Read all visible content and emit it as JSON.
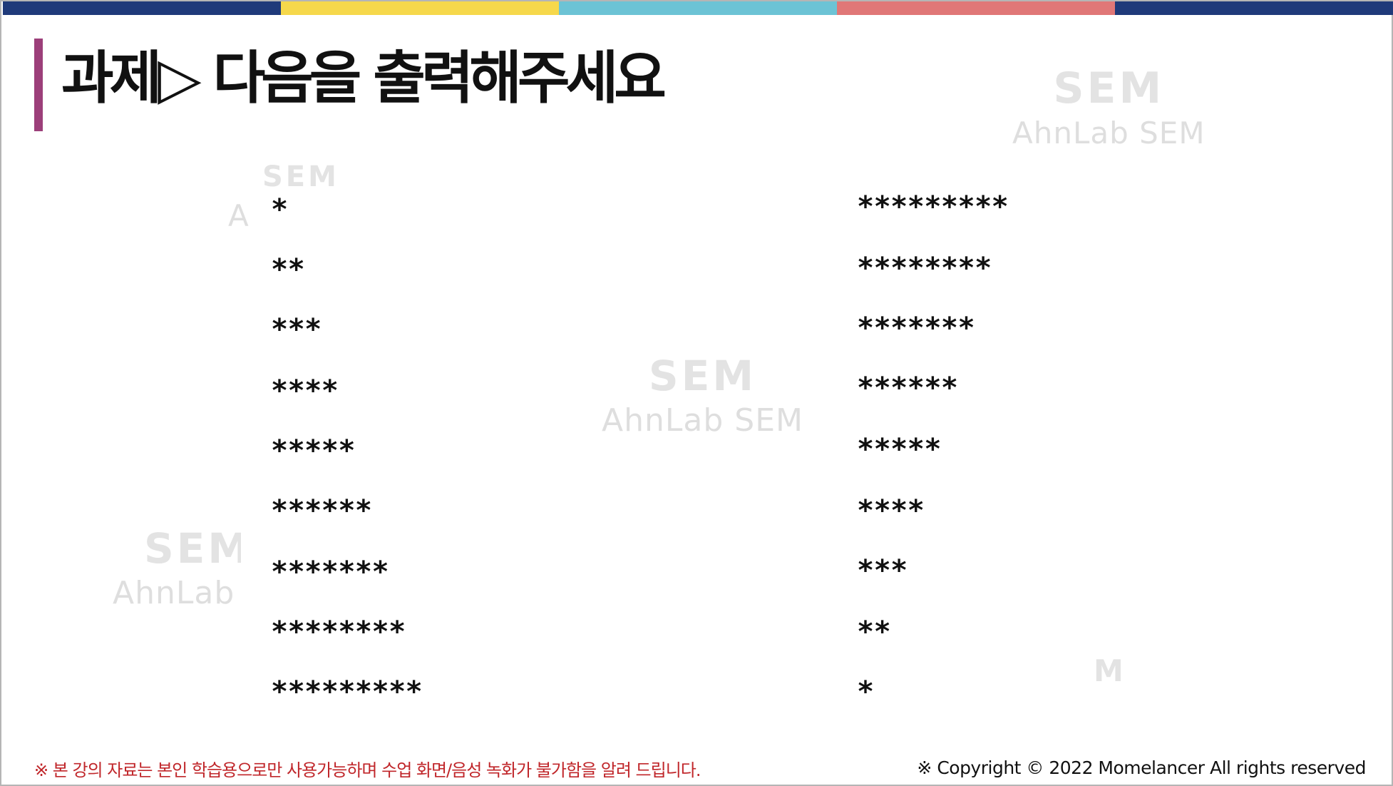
{
  "top_bar": {
    "colors": [
      "#1f3a7a",
      "#f6d84b",
      "#6cc3d5",
      "#e07777",
      "#1f3a7a"
    ]
  },
  "title": {
    "text": "과제▷ 다음을 출력해주세요",
    "accent_color": "#9c3f7a"
  },
  "watermarks": [
    {
      "logo": "SEM",
      "text": "AhnLab SEM"
    },
    {
      "logo": "SEM",
      "text": "A"
    },
    {
      "logo": "SEM",
      "text": "AhnLab SEM"
    },
    {
      "logo": "SEM",
      "text": "AhnLab S"
    },
    {
      "logo": "M",
      "text": ""
    }
  ],
  "left_pattern": {
    "rows": [
      "*",
      "**",
      "***",
      "****",
      "*****",
      "******",
      "*******",
      "********",
      "*********"
    ]
  },
  "right_pattern": {
    "rows": [
      "*********",
      "********",
      "*******",
      "******",
      "*****",
      "****",
      "***",
      "**",
      "*"
    ]
  },
  "footer": {
    "notice": "※ 본 강의 자료는 본인 학습용으로만 사용가능하며 수업 화면/음성 녹화가 불가함을 알려 드립니다.",
    "copyright": "※ Copyright © 2022 Momelancer All rights reserved"
  }
}
